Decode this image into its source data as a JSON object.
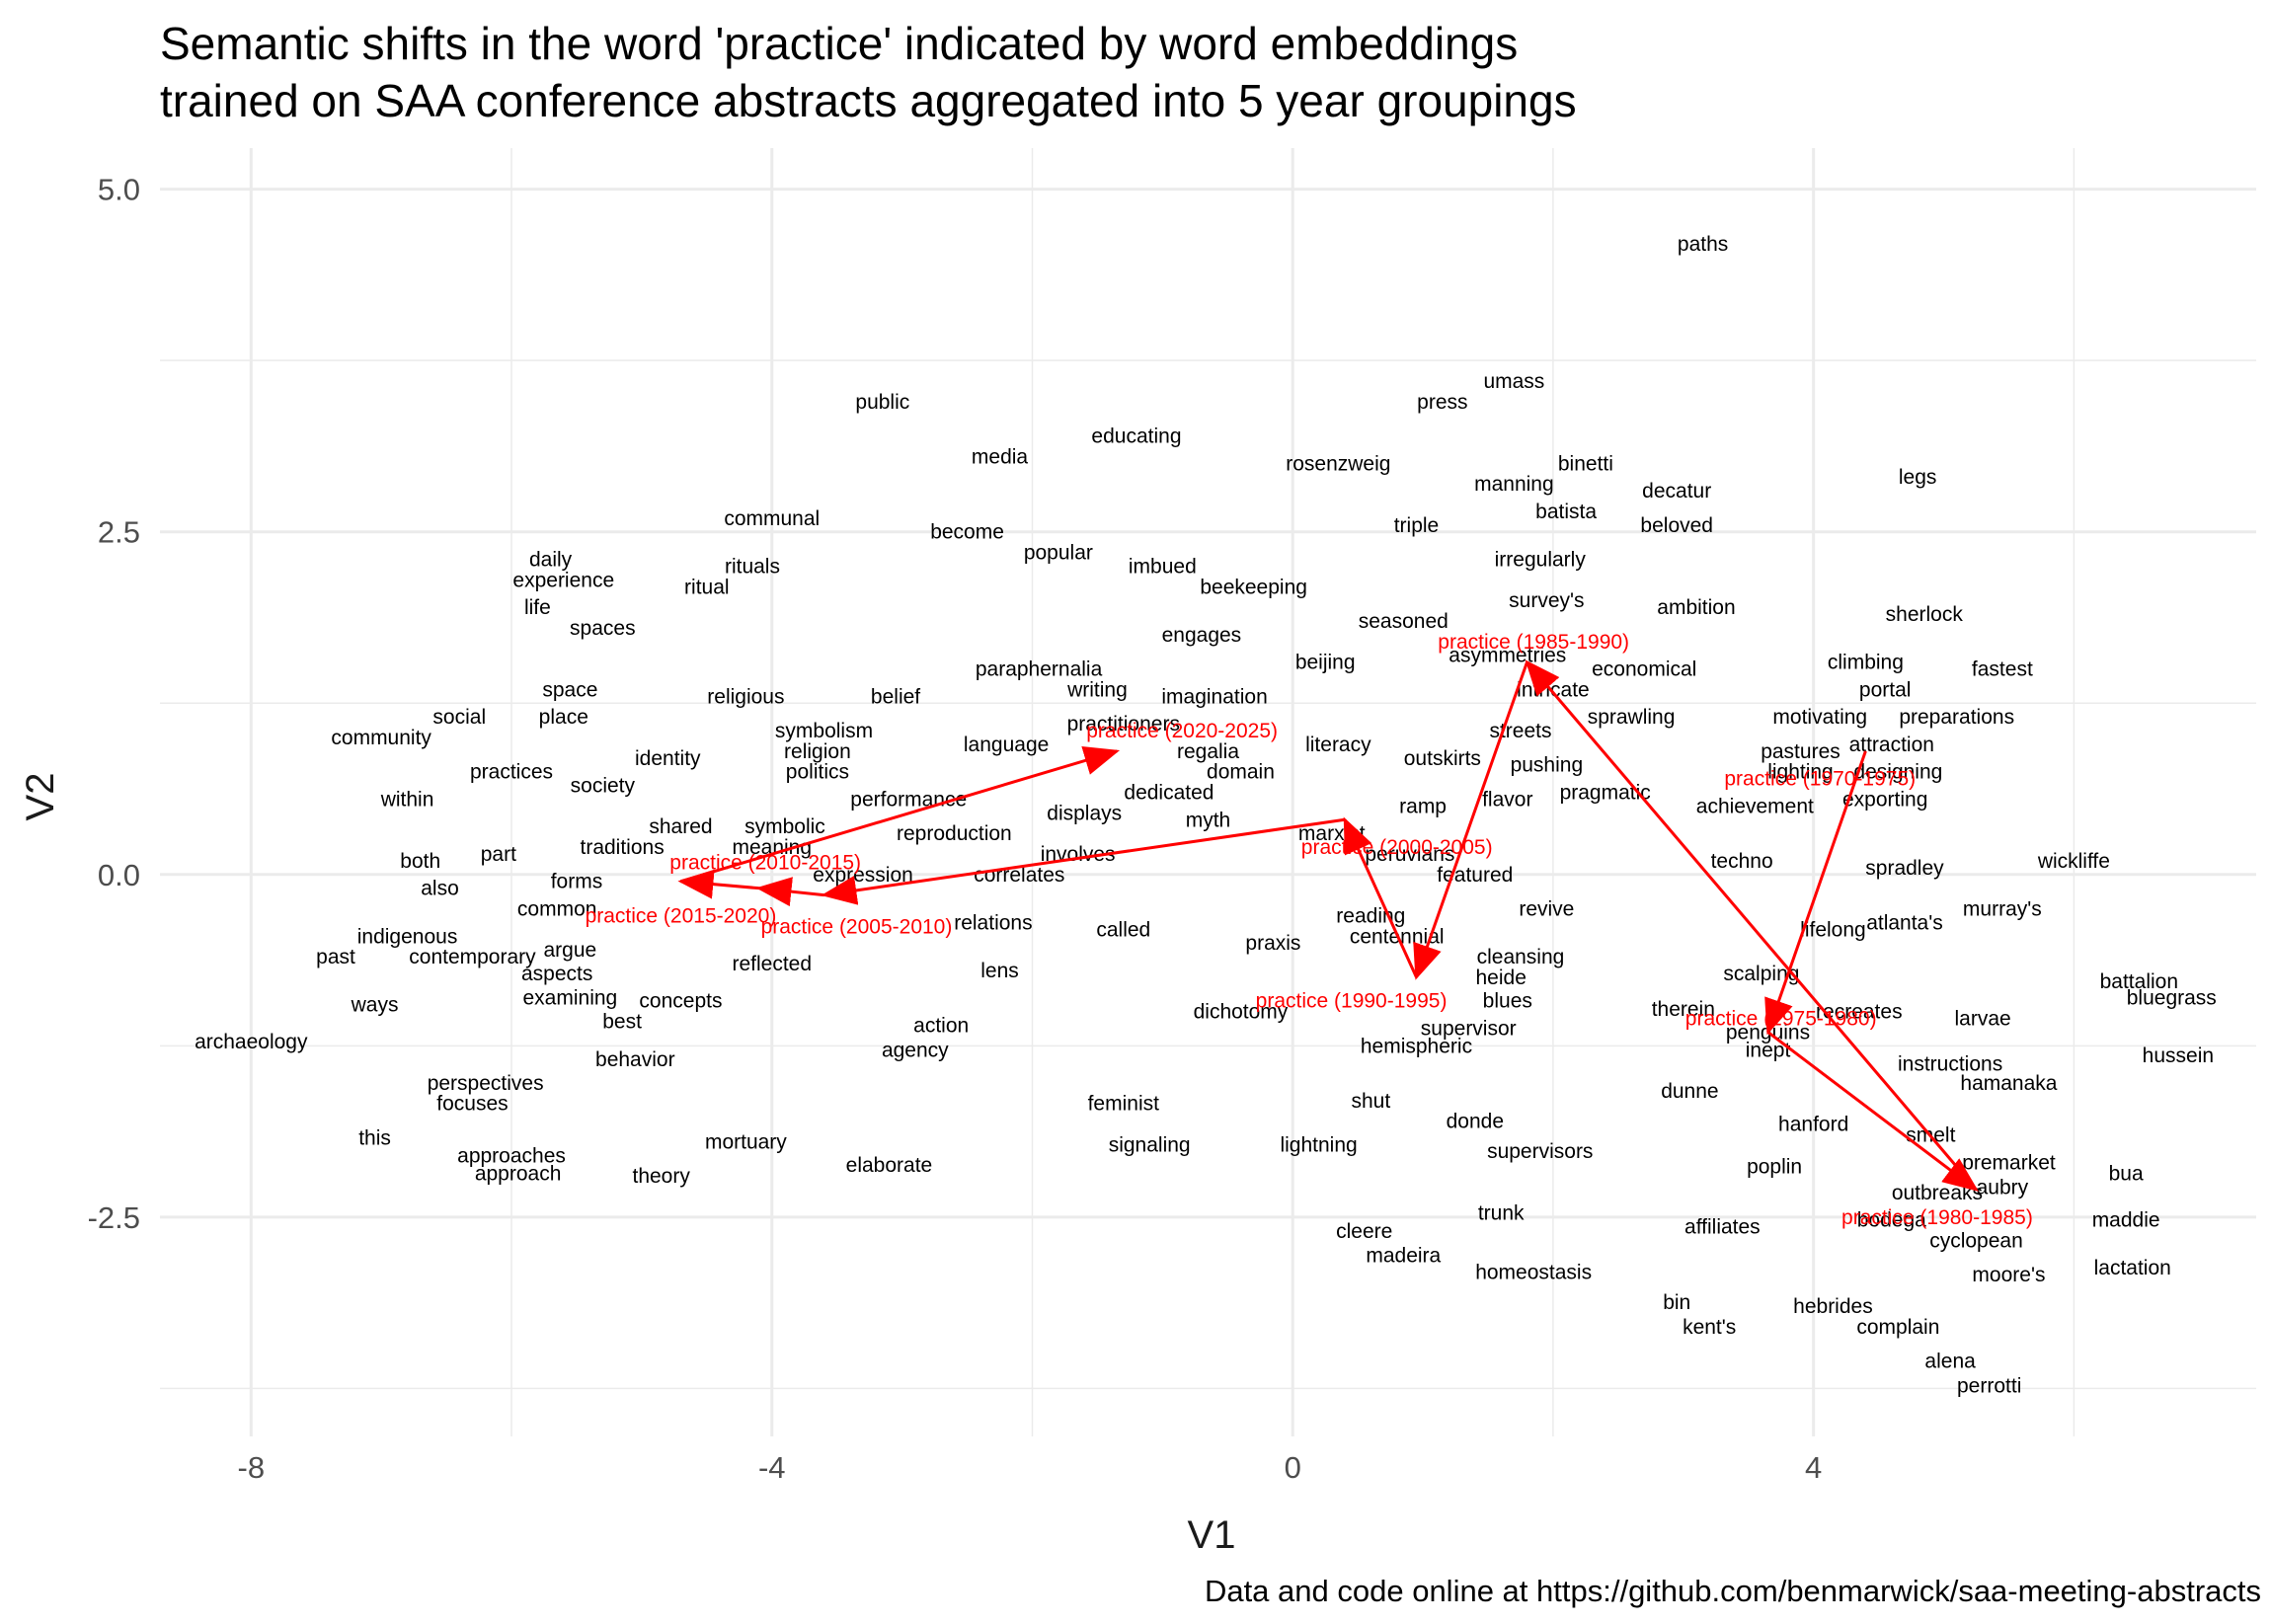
{
  "title_line1": "Semantic shifts in the word 'practice' indicated by word embeddings",
  "title_line2": "trained on SAA conference abstracts aggregated into 5 year groupings",
  "caption": "Data and code online at https://github.com/benmarwick/saa-meeting-abstracts",
  "colors": {
    "background": "#ffffff",
    "grid": "#ebebeb",
    "accent": "#ff0000",
    "text": "#000000"
  },
  "chart_data": {
    "type": "scatter",
    "title": "Semantic shifts in the word 'practice' indicated by word embeddings trained on SAA conference abstracts aggregated into 5 year groupings",
    "xlabel": "V1",
    "ylabel": "V2",
    "xlim": [
      -8.7,
      7.4
    ],
    "ylim": [
      -4.1,
      5.3
    ],
    "x_ticks": [
      -8,
      -4,
      0,
      4
    ],
    "y_ticks": [
      5.0,
      2.5,
      0.0,
      -2.5
    ],
    "x_tick_labels": [
      "-8",
      "-4",
      "0",
      "4"
    ],
    "y_tick_labels": [
      "5.0",
      "2.5",
      "0.0",
      "-2.5"
    ],
    "grid": true,
    "words": [
      {
        "label": "paths",
        "x": 3.15,
        "y": 4.6
      },
      {
        "label": "umass",
        "x": 1.7,
        "y": 3.6
      },
      {
        "label": "press",
        "x": 1.15,
        "y": 3.45
      },
      {
        "label": "public",
        "x": -3.15,
        "y": 3.45
      },
      {
        "label": "educating",
        "x": -1.2,
        "y": 3.2
      },
      {
        "label": "media",
        "x": -2.25,
        "y": 3.05
      },
      {
        "label": "rosenzweig",
        "x": 0.35,
        "y": 3.0
      },
      {
        "label": "binetti",
        "x": 2.25,
        "y": 3.0
      },
      {
        "label": "legs",
        "x": 4.8,
        "y": 2.9
      },
      {
        "label": "manning",
        "x": 1.7,
        "y": 2.85
      },
      {
        "label": "decatur",
        "x": 2.95,
        "y": 2.8
      },
      {
        "label": "batista",
        "x": 2.1,
        "y": 2.65
      },
      {
        "label": "communal",
        "x": -4.0,
        "y": 2.6
      },
      {
        "label": "triple",
        "x": 0.95,
        "y": 2.55
      },
      {
        "label": "beloved",
        "x": 2.95,
        "y": 2.55
      },
      {
        "label": "become",
        "x": -2.5,
        "y": 2.5
      },
      {
        "label": "popular",
        "x": -1.8,
        "y": 2.35
      },
      {
        "label": "daily",
        "x": -5.7,
        "y": 2.3
      },
      {
        "label": "rituals",
        "x": -4.15,
        "y": 2.25
      },
      {
        "label": "imbued",
        "x": -1.0,
        "y": 2.25
      },
      {
        "label": "irregularly",
        "x": 1.9,
        "y": 2.3
      },
      {
        "label": "experience",
        "x": -5.6,
        "y": 2.15
      },
      {
        "label": "ritual",
        "x": -4.5,
        "y": 2.1
      },
      {
        "label": "beekeeping",
        "x": -0.3,
        "y": 2.1
      },
      {
        "label": "survey's",
        "x": 1.95,
        "y": 2.0
      },
      {
        "label": "life",
        "x": -5.8,
        "y": 1.95
      },
      {
        "label": "ambition",
        "x": 3.1,
        "y": 1.95
      },
      {
        "label": "spaces",
        "x": -5.3,
        "y": 1.8
      },
      {
        "label": "seasoned",
        "x": 0.85,
        "y": 1.85
      },
      {
        "label": "sherlock",
        "x": 4.85,
        "y": 1.9
      },
      {
        "label": "engages",
        "x": -0.7,
        "y": 1.75
      },
      {
        "label": "asymmetries",
        "x": 1.65,
        "y": 1.6
      },
      {
        "label": "climbing",
        "x": 4.4,
        "y": 1.55
      },
      {
        "label": "beijing",
        "x": 0.25,
        "y": 1.55
      },
      {
        "label": "paraphernalia",
        "x": -1.95,
        "y": 1.5
      },
      {
        "label": "economical",
        "x": 2.7,
        "y": 1.5
      },
      {
        "label": "fastest",
        "x": 5.45,
        "y": 1.5
      },
      {
        "label": "portal",
        "x": 4.55,
        "y": 1.35
      },
      {
        "label": "writing",
        "x": -1.5,
        "y": 1.35
      },
      {
        "label": "intricate",
        "x": 2.0,
        "y": 1.35
      },
      {
        "label": "space",
        "x": -5.55,
        "y": 1.35
      },
      {
        "label": "belief",
        "x": -3.05,
        "y": 1.3
      },
      {
        "label": "imagination",
        "x": -0.6,
        "y": 1.3
      },
      {
        "label": "religious",
        "x": -4.2,
        "y": 1.3
      },
      {
        "label": "sprawling",
        "x": 2.6,
        "y": 1.15
      },
      {
        "label": "motivating",
        "x": 4.05,
        "y": 1.15
      },
      {
        "label": "social",
        "x": -6.4,
        "y": 1.15
      },
      {
        "label": "preparations",
        "x": 5.1,
        "y": 1.15
      },
      {
        "label": "place",
        "x": -5.6,
        "y": 1.15
      },
      {
        "label": "practitioners",
        "x": -1.3,
        "y": 1.1
      },
      {
        "label": "streets",
        "x": 1.75,
        "y": 1.05
      },
      {
        "label": "community",
        "x": -7.0,
        "y": 1.0
      },
      {
        "label": "symbolism",
        "x": -3.6,
        "y": 1.05
      },
      {
        "label": "language",
        "x": -2.2,
        "y": 0.95
      },
      {
        "label": "literacy",
        "x": 0.35,
        "y": 0.95
      },
      {
        "label": "attraction",
        "x": 4.6,
        "y": 0.95
      },
      {
        "label": "regalia",
        "x": -0.65,
        "y": 0.9
      },
      {
        "label": "religion",
        "x": -3.65,
        "y": 0.9
      },
      {
        "label": "pastures",
        "x": 3.9,
        "y": 0.9
      },
      {
        "label": "outskirts",
        "x": 1.15,
        "y": 0.85
      },
      {
        "label": "identity",
        "x": -4.8,
        "y": 0.85
      },
      {
        "label": "pushing",
        "x": 1.95,
        "y": 0.8
      },
      {
        "label": "domain",
        "x": -0.4,
        "y": 0.75
      },
      {
        "label": "politics",
        "x": -3.65,
        "y": 0.75
      },
      {
        "label": "lighting",
        "x": 3.9,
        "y": 0.75
      },
      {
        "label": "designing",
        "x": 4.65,
        "y": 0.75
      },
      {
        "label": "practices",
        "x": -6.0,
        "y": 0.75
      },
      {
        "label": "dedicated",
        "x": -0.95,
        "y": 0.6
      },
      {
        "label": "society",
        "x": -5.3,
        "y": 0.65
      },
      {
        "label": "flavor",
        "x": 1.65,
        "y": 0.55
      },
      {
        "label": "pragmatic",
        "x": 2.4,
        "y": 0.6
      },
      {
        "label": "exporting",
        "x": 4.55,
        "y": 0.55
      },
      {
        "label": "within",
        "x": -6.8,
        "y": 0.55
      },
      {
        "label": "performance",
        "x": -2.95,
        "y": 0.55
      },
      {
        "label": "achievement",
        "x": 3.55,
        "y": 0.5
      },
      {
        "label": "ramp",
        "x": 1.0,
        "y": 0.5
      },
      {
        "label": "displays",
        "x": -1.6,
        "y": 0.45
      },
      {
        "label": "myth",
        "x": -0.65,
        "y": 0.4
      },
      {
        "label": "symbolic",
        "x": -3.9,
        "y": 0.35
      },
      {
        "label": "shared",
        "x": -4.7,
        "y": 0.35
      },
      {
        "label": "reproduction",
        "x": -2.6,
        "y": 0.3
      },
      {
        "label": "marxist",
        "x": 0.3,
        "y": 0.3
      },
      {
        "label": "traditions",
        "x": -5.15,
        "y": 0.2
      },
      {
        "label": "meaning",
        "x": -4.0,
        "y": 0.2
      },
      {
        "label": "involves",
        "x": -1.65,
        "y": 0.15
      },
      {
        "label": "peruvians",
        "x": 0.9,
        "y": 0.15
      },
      {
        "label": "part",
        "x": -6.1,
        "y": 0.15
      },
      {
        "label": "both",
        "x": -6.7,
        "y": 0.1
      },
      {
        "label": "techno",
        "x": 3.45,
        "y": 0.1
      },
      {
        "label": "wickliffe",
        "x": 6.0,
        "y": 0.1
      },
      {
        "label": "spradley",
        "x": 4.7,
        "y": 0.05
      },
      {
        "label": "correlates",
        "x": -2.1,
        "y": 0.0
      },
      {
        "label": "expression",
        "x": -3.3,
        "y": 0.0
      },
      {
        "label": "featured",
        "x": 1.4,
        "y": 0.0
      },
      {
        "label": "forms",
        "x": -5.5,
        "y": -0.05
      },
      {
        "label": "also",
        "x": -6.55,
        "y": -0.1
      },
      {
        "label": "murray's",
        "x": 5.45,
        "y": -0.25
      },
      {
        "label": "common",
        "x": -5.65,
        "y": -0.25
      },
      {
        "label": "revive",
        "x": 1.95,
        "y": -0.25
      },
      {
        "label": "reading",
        "x": 0.6,
        "y": -0.3
      },
      {
        "label": "atlanta's",
        "x": 4.7,
        "y": -0.35
      },
      {
        "label": "centennial",
        "x": 0.8,
        "y": -0.45
      },
      {
        "label": "lifelong",
        "x": 4.15,
        "y": -0.4
      },
      {
        "label": "relations",
        "x": -2.3,
        "y": -0.35
      },
      {
        "label": "called",
        "x": -1.3,
        "y": -0.4
      },
      {
        "label": "indigenous",
        "x": -6.8,
        "y": -0.45
      },
      {
        "label": "praxis",
        "x": -0.15,
        "y": -0.5
      },
      {
        "label": "past",
        "x": -7.35,
        "y": -0.6
      },
      {
        "label": "contemporary",
        "x": -6.3,
        "y": -0.6
      },
      {
        "label": "argue",
        "x": -5.55,
        "y": -0.55
      },
      {
        "label": "cleansing",
        "x": 1.75,
        "y": -0.6
      },
      {
        "label": "reflected",
        "x": -4.0,
        "y": -0.65
      },
      {
        "label": "lens",
        "x": -2.25,
        "y": -0.7
      },
      {
        "label": "aspects",
        "x": -5.65,
        "y": -0.72
      },
      {
        "label": "heide",
        "x": 1.6,
        "y": -0.75
      },
      {
        "label": "scalping",
        "x": 3.6,
        "y": -0.72
      },
      {
        "label": "battalion",
        "x": 6.5,
        "y": -0.78
      },
      {
        "label": "examining",
        "x": -5.55,
        "y": -0.9
      },
      {
        "label": "concepts",
        "x": -4.7,
        "y": -0.92
      },
      {
        "label": "blues",
        "x": 1.65,
        "y": -0.92
      },
      {
        "label": "bluegrass",
        "x": 6.75,
        "y": -0.9
      },
      {
        "label": "ways",
        "x": -7.05,
        "y": -0.95
      },
      {
        "label": "therein",
        "x": 3.0,
        "y": -0.98
      },
      {
        "label": "dichotomy",
        "x": -0.4,
        "y": -1.0
      },
      {
        "label": "recreates",
        "x": 4.35,
        "y": -1.0
      },
      {
        "label": "larvae",
        "x": 5.3,
        "y": -1.05
      },
      {
        "label": "best",
        "x": -5.15,
        "y": -1.07
      },
      {
        "label": "action",
        "x": -2.7,
        "y": -1.1
      },
      {
        "label": "supervisor",
        "x": 1.35,
        "y": -1.12
      },
      {
        "label": "penguins",
        "x": 3.65,
        "y": -1.15
      },
      {
        "label": "archaeology",
        "x": -8.0,
        "y": -1.22
      },
      {
        "label": "agency",
        "x": -2.9,
        "y": -1.28
      },
      {
        "label": "hemispheric",
        "x": 0.95,
        "y": -1.25
      },
      {
        "label": "inept",
        "x": 3.65,
        "y": -1.28
      },
      {
        "label": "hussein",
        "x": 6.8,
        "y": -1.32
      },
      {
        "label": "behavior",
        "x": -5.05,
        "y": -1.35
      },
      {
        "label": "instructions",
        "x": 5.05,
        "y": -1.38
      },
      {
        "label": "perspectives",
        "x": -6.2,
        "y": -1.52
      },
      {
        "label": "hamanaka",
        "x": 5.5,
        "y": -1.52
      },
      {
        "label": "dunne",
        "x": 3.05,
        "y": -1.58
      },
      {
        "label": "focuses",
        "x": -6.3,
        "y": -1.67
      },
      {
        "label": "feminist",
        "x": -1.3,
        "y": -1.67
      },
      {
        "label": "shut",
        "x": 0.6,
        "y": -1.65
      },
      {
        "label": "donde",
        "x": 1.4,
        "y": -1.8
      },
      {
        "label": "hanford",
        "x": 4.0,
        "y": -1.82
      },
      {
        "label": "smelt",
        "x": 4.9,
        "y": -1.9
      },
      {
        "label": "this",
        "x": -7.05,
        "y": -1.92
      },
      {
        "label": "mortuary",
        "x": -4.2,
        "y": -1.95
      },
      {
        "label": "signaling",
        "x": -1.1,
        "y": -1.97
      },
      {
        "label": "lightning",
        "x": 0.2,
        "y": -1.97
      },
      {
        "label": "supervisors",
        "x": 1.9,
        "y": -2.02
      },
      {
        "label": "approaches",
        "x": -6.0,
        "y": -2.05
      },
      {
        "label": "premarket",
        "x": 5.5,
        "y": -2.1
      },
      {
        "label": "elaborate",
        "x": -3.1,
        "y": -2.12
      },
      {
        "label": "poplin",
        "x": 3.7,
        "y": -2.13
      },
      {
        "label": "approach",
        "x": -5.95,
        "y": -2.18
      },
      {
        "label": "theory",
        "x": -4.85,
        "y": -2.2
      },
      {
        "label": "bua",
        "x": 6.4,
        "y": -2.18
      },
      {
        "label": "aubry",
        "x": 5.45,
        "y": -2.28
      },
      {
        "label": "outbreaks",
        "x": 4.95,
        "y": -2.32
      },
      {
        "label": "trunk",
        "x": 1.6,
        "y": -2.47
      },
      {
        "label": "bodega",
        "x": 4.6,
        "y": -2.52
      },
      {
        "label": "maddie",
        "x": 6.4,
        "y": -2.52
      },
      {
        "label": "affiliates",
        "x": 3.3,
        "y": -2.57
      },
      {
        "label": "cleere",
        "x": 0.55,
        "y": -2.6
      },
      {
        "label": "cyclopean",
        "x": 5.25,
        "y": -2.67
      },
      {
        "label": "madeira",
        "x": 0.85,
        "y": -2.78
      },
      {
        "label": "homeostasis",
        "x": 1.85,
        "y": -2.9
      },
      {
        "label": "lactation",
        "x": 6.45,
        "y": -2.87
      },
      {
        "label": "moore's",
        "x": 5.5,
        "y": -2.92
      },
      {
        "label": "bin",
        "x": 2.95,
        "y": -3.12
      },
      {
        "label": "hebrides",
        "x": 4.15,
        "y": -3.15
      },
      {
        "label": "kent's",
        "x": 3.2,
        "y": -3.3
      },
      {
        "label": "complain",
        "x": 4.65,
        "y": -3.3
      },
      {
        "label": "alena",
        "x": 5.05,
        "y": -3.55
      },
      {
        "label": "perrotti",
        "x": 5.35,
        "y": -3.73
      }
    ],
    "practice_series": {
      "name": "practice",
      "points": [
        {
          "label": "practice (1970-1975)",
          "x": 4.4,
          "y": 0.9
        },
        {
          "label": "practice (1975-1980)",
          "x": 3.65,
          "y": -1.15
        },
        {
          "label": "practice (1980-1985)",
          "x": 5.25,
          "y": -2.3
        },
        {
          "label": "practice (1985-1990)",
          "x": 1.8,
          "y": 1.55
        },
        {
          "label": "practice (1990-1995)",
          "x": 0.95,
          "y": -0.75
        },
        {
          "label": "practice (2000-2005)",
          "x": 0.4,
          "y": 0.4
        },
        {
          "label": "practice (2005-2010)",
          "x": -3.6,
          "y": -0.15
        },
        {
          "label": "practice (2010-2015)",
          "x": -4.1,
          "y": -0.1
        },
        {
          "label": "practice (2015-2020)",
          "x": -4.7,
          "y": -0.05
        },
        {
          "label": "practice (2020-2025)",
          "x": -1.35,
          "y": 0.9
        }
      ],
      "label_positions": [
        {
          "x": 4.05,
          "y": 0.7
        },
        {
          "x": 3.75,
          "y": -1.05
        },
        {
          "x": 4.95,
          "y": -2.5
        },
        {
          "x": 1.85,
          "y": 1.7
        },
        {
          "x": 0.45,
          "y": -0.92
        },
        {
          "x": 0.8,
          "y": 0.2
        },
        {
          "x": -3.35,
          "y": -0.38
        },
        {
          "x": -4.05,
          "y": 0.09
        },
        {
          "x": -4.7,
          "y": -0.3
        },
        {
          "x": -0.85,
          "y": 1.05
        }
      ]
    }
  }
}
